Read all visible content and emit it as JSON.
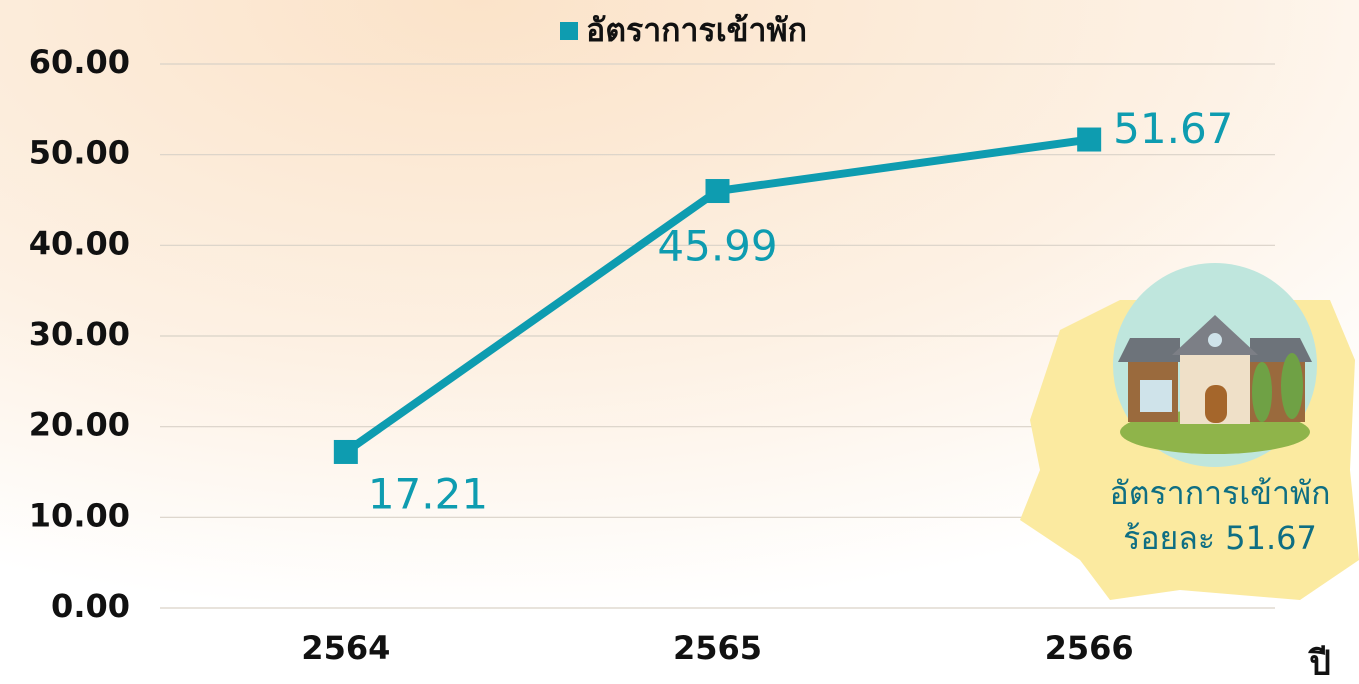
{
  "chart_data": {
    "type": "line",
    "categories": [
      "2564",
      "2565",
      "2566"
    ],
    "series": [
      {
        "name": "อัตราการเข้าพัก",
        "color": "#0e9cb0",
        "values": [
          17.21,
          45.99,
          51.67
        ]
      }
    ],
    "ylim": [
      0,
      60
    ],
    "yticks": [
      {
        "value": 0,
        "label": "0.00"
      },
      {
        "value": 10,
        "label": "10.00"
      },
      {
        "value": 20,
        "label": "20.00"
      },
      {
        "value": 30,
        "label": "30.00"
      },
      {
        "value": 40,
        "label": "40.00"
      },
      {
        "value": 50,
        "label": "50.00"
      },
      {
        "value": 60,
        "label": "60.00"
      }
    ],
    "grid": true,
    "legend": "top",
    "x_label": "ปี",
    "annotations": [
      "อัตราการเข้าพัก",
      "ร้อยละ 51.67"
    ]
  }
}
